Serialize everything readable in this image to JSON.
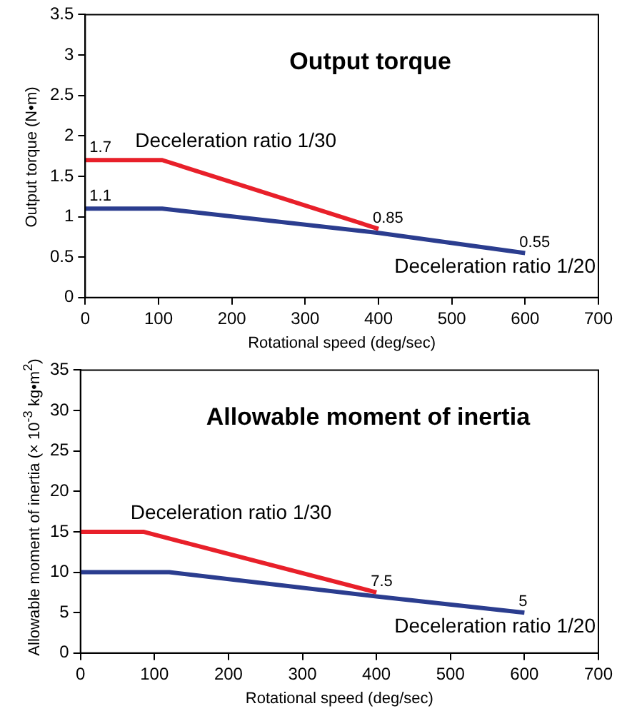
{
  "chart_data": [
    {
      "type": "line",
      "title": "Output torque",
      "xlabel": "Rotational speed (deg/sec)",
      "ylabel": "Output torque (N•m)",
      "xlim": [
        0,
        700
      ],
      "xticks": [
        0,
        100,
        200,
        300,
        400,
        500,
        600,
        700
      ],
      "ylim": [
        0,
        3.5
      ],
      "yticks": [
        0,
        0.5,
        1,
        1.5,
        2,
        2.5,
        3,
        3.5
      ],
      "grid": false,
      "legend": false,
      "marker": "none",
      "series": [
        {
          "name": "Deceleration ratio 1/30",
          "color": "#e8202a",
          "x": [
            0,
            105,
            400
          ],
          "values": [
            1.7,
            1.7,
            0.85
          ],
          "value_labels": [
            "1.7",
            null,
            "0.85"
          ]
        },
        {
          "name": "Deceleration ratio 1/20",
          "color": "#2b3d8f",
          "x": [
            0,
            105,
            400,
            600
          ],
          "values": [
            1.1,
            1.1,
            0.8,
            0.55
          ],
          "value_labels": [
            "1.1",
            null,
            null,
            "0.55"
          ]
        }
      ]
    },
    {
      "type": "line",
      "title": "Allowable moment of inertia",
      "xlabel": "Rotational speed (deg/sec)",
      "ylabel": "Allowable moment of inertia (× 10$^{-3}$ kg•m$^{2}$)",
      "xlim": [
        0,
        700
      ],
      "xticks": [
        0,
        100,
        200,
        300,
        400,
        500,
        600,
        700
      ],
      "ylim": [
        0,
        35
      ],
      "yticks": [
        0,
        5,
        10,
        15,
        20,
        25,
        30,
        35
      ],
      "grid": false,
      "legend": false,
      "marker": "none",
      "series": [
        {
          "name": "Deceleration ratio 1/30",
          "color": "#e8202a",
          "x": [
            0,
            85,
            400
          ],
          "values": [
            15,
            15,
            7.5
          ],
          "value_labels": [
            null,
            null,
            "7.5"
          ]
        },
        {
          "name": "Deceleration ratio 1/20",
          "color": "#2b3d8f",
          "x": [
            0,
            120,
            400,
            600
          ],
          "values": [
            10,
            10,
            7,
            5
          ],
          "value_labels": [
            null,
            null,
            null,
            "5"
          ]
        }
      ]
    }
  ]
}
